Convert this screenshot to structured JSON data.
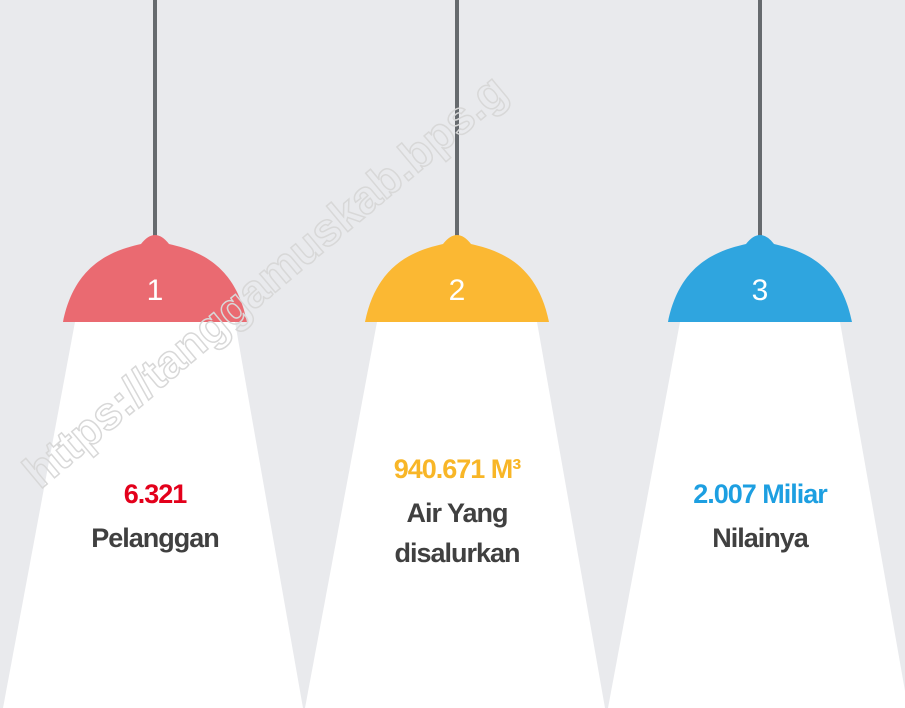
{
  "watermark": "https://tanggamuskab.bps.g",
  "lamps": [
    {
      "number": "1",
      "value": "6.321",
      "label_lines": [
        "Pelanggan"
      ],
      "lamp_color": "#ea6a71",
      "value_color": "#e3001b"
    },
    {
      "number": "2",
      "value": "940.671 M³",
      "label_lines": [
        "Air Yang",
        "disalurkan"
      ],
      "lamp_color": "#fbb833",
      "value_color": "#f8b627"
    },
    {
      "number": "3",
      "value": "2.007 Miliar",
      "label_lines": [
        "Nilainya"
      ],
      "lamp_color": "#2fa5df",
      "value_color": "#1d9fe1"
    }
  ]
}
